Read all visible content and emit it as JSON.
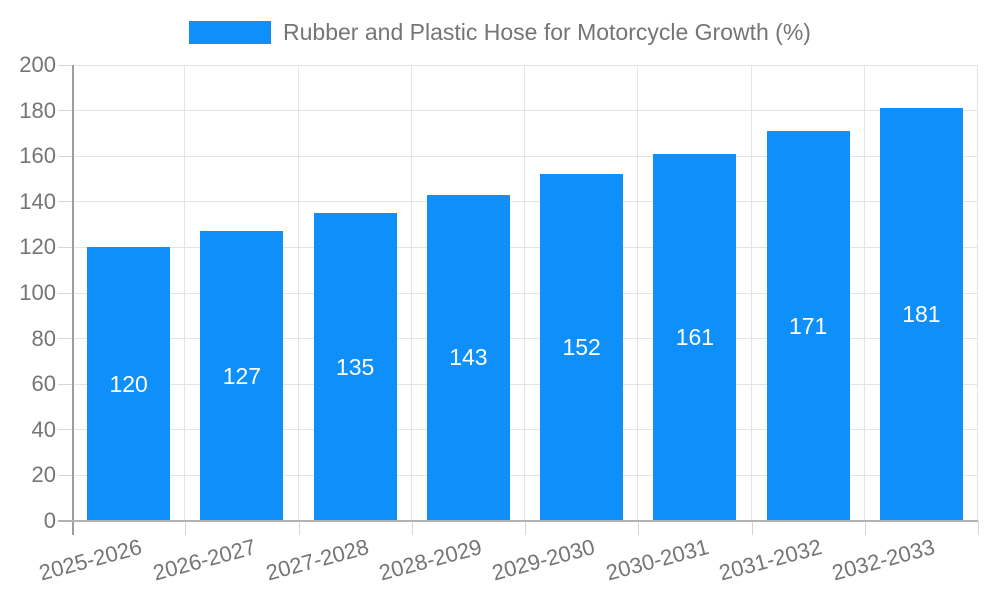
{
  "legend": {
    "label": "Rubber and Plastic Hose for Motorcycle Growth (%)"
  },
  "chart_data": {
    "type": "bar",
    "title": "Rubber and Plastic Hose for Motorcycle Growth (%)",
    "categories": [
      "2025-2026",
      "2026-2027",
      "2027-2028",
      "2028-2029",
      "2029-2030",
      "2030-2031",
      "2031-2032",
      "2032-2033"
    ],
    "values": [
      120,
      127,
      135,
      143,
      152,
      161,
      171,
      181
    ],
    "xlabel": "",
    "ylabel": "",
    "ylim": [
      0,
      200
    ],
    "ytick_step": 20,
    "grid": true,
    "legend_position": "top-center",
    "colors": {
      "bar": "#0e8ff9",
      "bar_label": "#ffffff",
      "axis_line": "#9e9e9e",
      "bottom_axis_line": "#b2b2b2",
      "gridline": "#e4e4e4",
      "tick": "#d6d6d6",
      "text": "#757575"
    }
  }
}
